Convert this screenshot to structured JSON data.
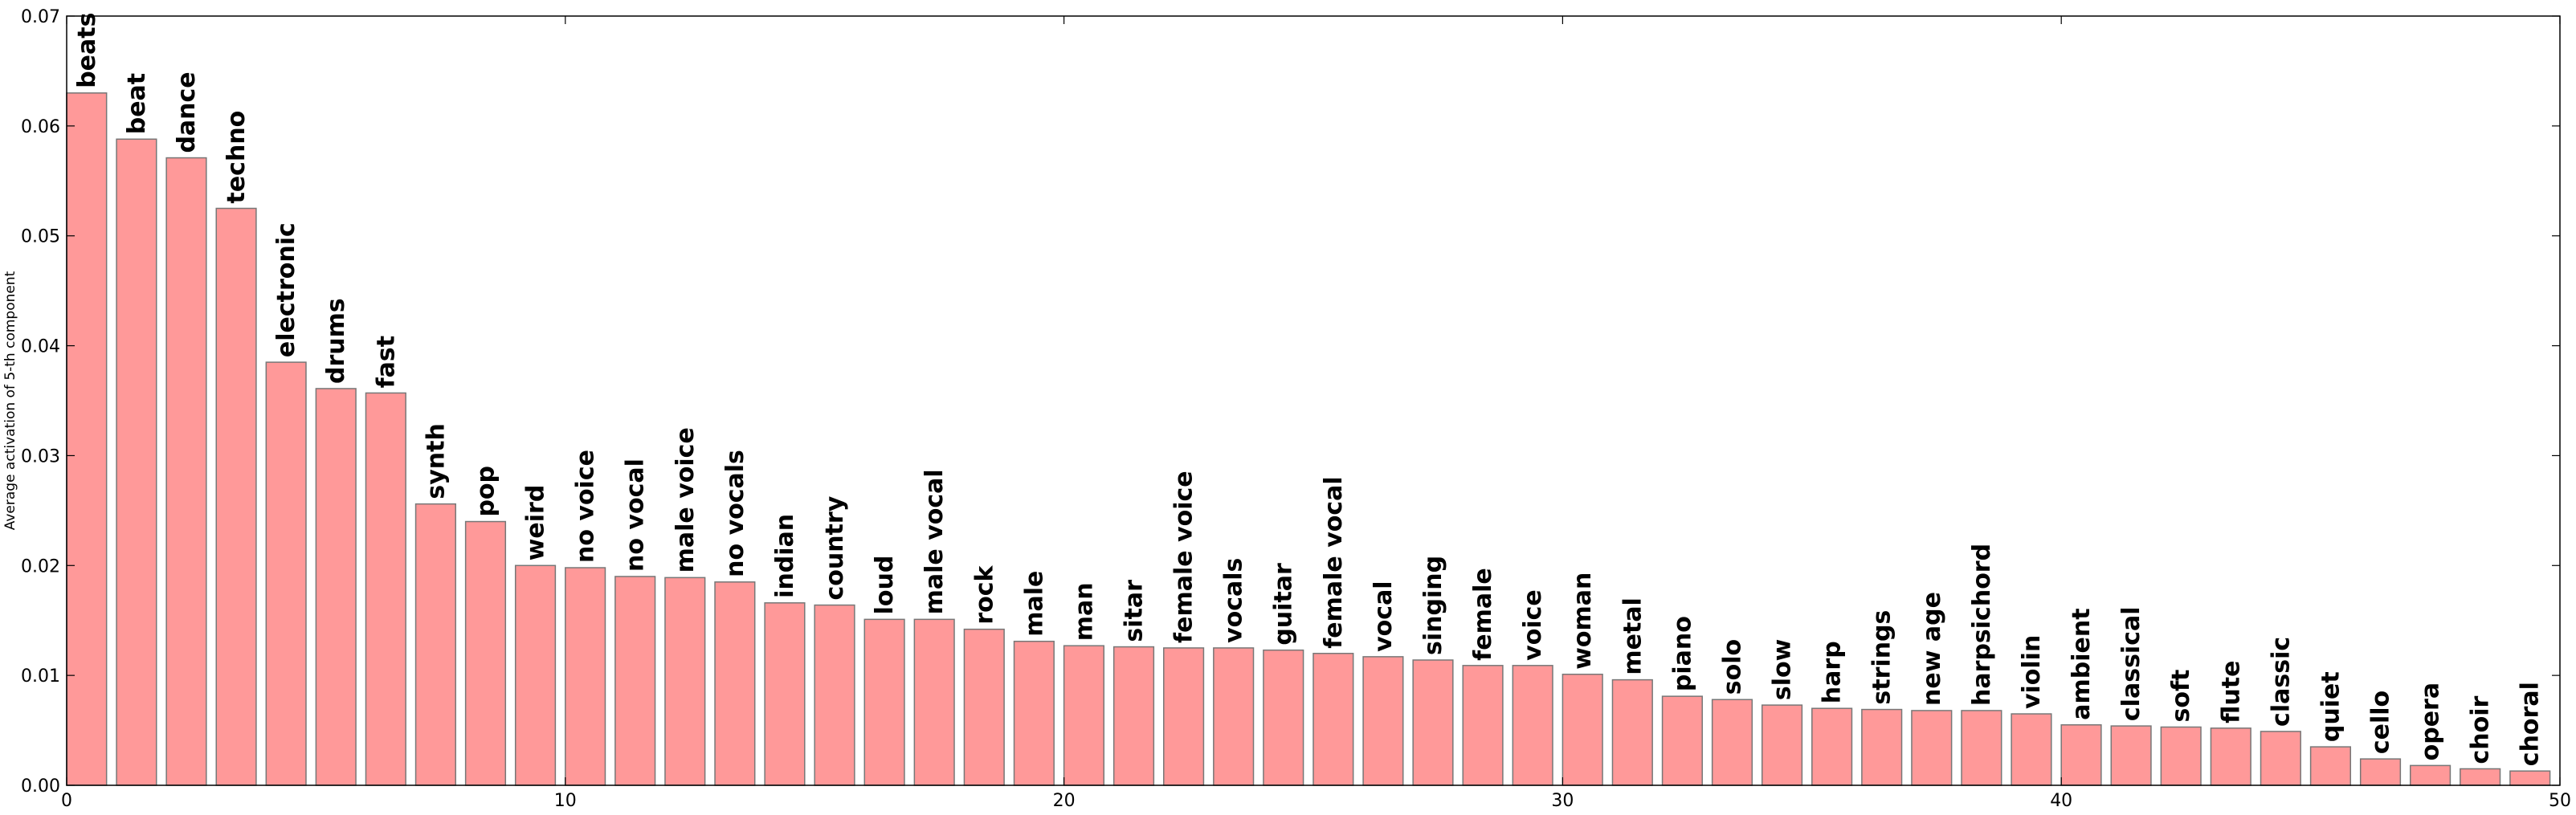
{
  "chart_data": {
    "type": "bar",
    "title": "",
    "xlabel": "",
    "ylabel": "Average activation of 5-th component",
    "xlim": [
      0,
      50
    ],
    "ylim": [
      0,
      0.07
    ],
    "xticks": [
      "0",
      "10",
      "20",
      "30",
      "40",
      "50"
    ],
    "yticks": [
      "0.00",
      "0.01",
      "0.02",
      "0.03",
      "0.04",
      "0.05",
      "0.06",
      "0.07"
    ],
    "bar_color": "#ff9999",
    "grid": false,
    "categories": [
      "beats",
      "beat",
      "dance",
      "techno",
      "electronic",
      "drums",
      "fast",
      "synth",
      "pop",
      "weird",
      "no voice",
      "no vocal",
      "male voice",
      "no vocals",
      "indian",
      "country",
      "loud",
      "male vocal",
      "rock",
      "male",
      "man",
      "sitar",
      "female voice",
      "vocals",
      "guitar",
      "female vocal",
      "vocal",
      "singing",
      "female",
      "voice",
      "woman",
      "metal",
      "piano",
      "solo",
      "slow",
      "harp",
      "strings",
      "new age",
      "harpsichord",
      "violin",
      "ambient",
      "classical",
      "soft",
      "flute",
      "classic",
      "quiet",
      "cello",
      "opera",
      "choir",
      "choral"
    ],
    "values": [
      0.063,
      0.0588,
      0.0571,
      0.0525,
      0.0385,
      0.0361,
      0.0357,
      0.0256,
      0.024,
      0.02,
      0.0198,
      0.019,
      0.0189,
      0.0185,
      0.0166,
      0.0164,
      0.0151,
      0.0151,
      0.0142,
      0.0131,
      0.0127,
      0.0126,
      0.0125,
      0.0125,
      0.0123,
      0.012,
      0.0117,
      0.0114,
      0.0109,
      0.0109,
      0.0101,
      0.0096,
      0.0081,
      0.0078,
      0.0073,
      0.007,
      0.0069,
      0.0068,
      0.0068,
      0.0065,
      0.0055,
      0.0054,
      0.0053,
      0.0052,
      0.0049,
      0.0035,
      0.0024,
      0.0018,
      0.0015,
      0.0013
    ]
  }
}
